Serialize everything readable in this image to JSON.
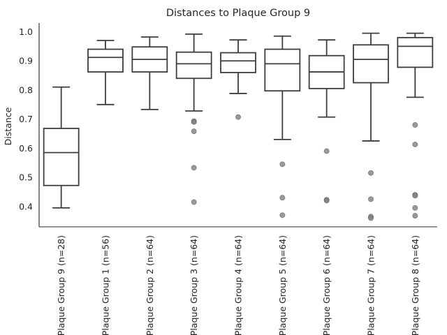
{
  "chart_data": {
    "type": "box",
    "title": "Distances to Plaque Group 9",
    "xlabel": "",
    "ylabel": "Distance",
    "ylim": [
      0.33,
      1.03
    ],
    "yticks": [
      "0.4",
      "0.5",
      "0.6",
      "0.7",
      "0.8",
      "0.9",
      "1.0"
    ],
    "categories": [
      "Plaque Group 9 (n=28)",
      "Plaque Group 1 (n=56)",
      "Plaque Group 2 (n=64)",
      "Plaque Group 3 (n=64)",
      "Plaque Group 4 (n=64)",
      "Plaque Group 5 (n=64)",
      "Plaque Group 6 (n=64)",
      "Plaque Group 7 (n=64)",
      "Plaque Group 8 (n=64)"
    ],
    "boxes": [
      {
        "whisker_low": 0.395,
        "q1": 0.472,
        "median": 0.585,
        "q3": 0.668,
        "whisker_high": 0.81,
        "outliers": []
      },
      {
        "whisker_low": 0.75,
        "q1": 0.862,
        "median": 0.912,
        "q3": 0.94,
        "whisker_high": 0.97,
        "outliers": []
      },
      {
        "whisker_low": 0.733,
        "q1": 0.862,
        "median": 0.905,
        "q3": 0.948,
        "whisker_high": 0.982,
        "outliers": []
      },
      {
        "whisker_low": 0.728,
        "q1": 0.84,
        "median": 0.89,
        "q3": 0.93,
        "whisker_high": 0.992,
        "outliers": [
          0.693,
          0.69,
          0.658,
          0.533,
          0.415
        ]
      },
      {
        "whisker_low": 0.788,
        "q1": 0.86,
        "median": 0.9,
        "q3": 0.928,
        "whisker_high": 0.972,
        "outliers": [
          0.707
        ]
      },
      {
        "whisker_low": 0.63,
        "q1": 0.797,
        "median": 0.89,
        "q3": 0.94,
        "whisker_high": 0.985,
        "outliers": [
          0.545,
          0.43,
          0.37
        ]
      },
      {
        "whisker_low": 0.707,
        "q1": 0.805,
        "median": 0.862,
        "q3": 0.918,
        "whisker_high": 0.972,
        "outliers": [
          0.59,
          0.423,
          0.42
        ]
      },
      {
        "whisker_low": 0.625,
        "q1": 0.825,
        "median": 0.905,
        "q3": 0.955,
        "whisker_high": 0.995,
        "outliers": [
          0.515,
          0.425,
          0.365,
          0.36
        ]
      },
      {
        "whisker_low": 0.775,
        "q1": 0.878,
        "median": 0.95,
        "q3": 0.98,
        "whisker_high": 0.995,
        "outliers": [
          0.68,
          0.613,
          0.44,
          0.437,
          0.395,
          0.368
        ]
      }
    ],
    "colors": {
      "box_edge": "#3d3d3d",
      "box_fill": "#ffffff",
      "outlier": "#7f7f7f",
      "axis": "#262626",
      "text": "#262626"
    },
    "grid": false,
    "legend": "none"
  }
}
